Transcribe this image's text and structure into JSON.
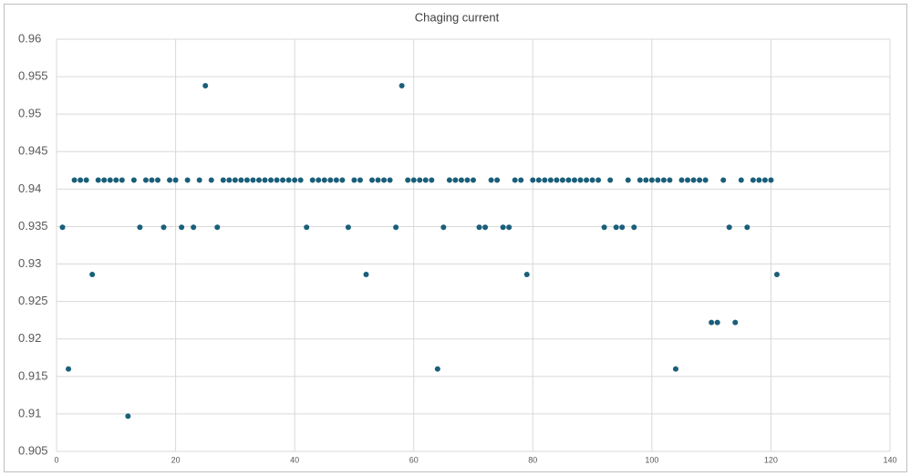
{
  "chart_data": {
    "type": "scatter",
    "title": "Chaging current",
    "color": "#1a5f7a",
    "grid": true,
    "x": [
      1,
      2,
      3,
      4,
      5,
      6,
      7,
      8,
      9,
      10,
      11,
      12,
      13,
      14,
      15,
      16,
      17,
      18,
      19,
      20,
      21,
      22,
      23,
      24,
      25,
      26,
      27,
      28,
      29,
      30,
      31,
      32,
      33,
      34,
      35,
      36,
      37,
      38,
      39,
      40,
      41,
      42,
      43,
      44,
      45,
      46,
      47,
      48,
      49,
      50,
      51,
      52,
      53,
      54,
      55,
      56,
      57,
      58,
      59,
      60,
      61,
      62,
      63,
      64,
      65,
      66,
      67,
      68,
      69,
      70,
      71,
      72,
      73,
      74,
      75,
      76,
      77,
      78,
      79,
      80,
      81,
      82,
      83,
      84,
      85,
      86,
      87,
      88,
      89,
      90,
      91,
      92,
      93,
      94,
      95,
      96,
      97,
      98,
      99,
      100,
      101,
      102,
      103,
      104,
      105,
      106,
      107,
      108,
      109,
      110,
      111,
      112,
      113,
      114,
      115,
      116,
      117,
      118,
      119,
      120,
      121
    ],
    "values": [
      0.9349,
      0.916,
      0.9412,
      0.9412,
      0.9412,
      0.9286,
      0.9412,
      0.9412,
      0.9412,
      0.9412,
      0.9412,
      0.9097,
      0.9412,
      0.9349,
      0.9412,
      0.9412,
      0.9412,
      0.9349,
      0.9412,
      0.9412,
      0.9349,
      0.9412,
      0.9349,
      0.9412,
      0.9538,
      0.9412,
      0.9349,
      0.9412,
      0.9412,
      0.9412,
      0.9412,
      0.9412,
      0.9412,
      0.9412,
      0.9412,
      0.9412,
      0.9412,
      0.9412,
      0.9412,
      0.9412,
      0.9412,
      0.9349,
      0.9412,
      0.9412,
      0.9412,
      0.9412,
      0.9412,
      0.9412,
      0.9349,
      0.9412,
      0.9412,
      0.9286,
      0.9412,
      0.9412,
      0.9412,
      0.9412,
      0.9349,
      0.9538,
      0.9412,
      0.9412,
      0.9412,
      0.9412,
      0.9412,
      0.916,
      0.9349,
      0.9412,
      0.9412,
      0.9412,
      0.9412,
      0.9412,
      0.9349,
      0.9349,
      0.9412,
      0.9412,
      0.9349,
      0.9349,
      0.9412,
      0.9412,
      0.9286,
      0.9412,
      0.9412,
      0.9412,
      0.9412,
      0.9412,
      0.9412,
      0.9412,
      0.9412,
      0.9412,
      0.9412,
      0.9412,
      0.9412,
      0.9349,
      0.9412,
      0.9349,
      0.9349,
      0.9412,
      0.9349,
      0.9412,
      0.9412,
      0.9412,
      0.9412,
      0.9412,
      0.9412,
      0.916,
      0.9412,
      0.9412,
      0.9412,
      0.9412,
      0.9412,
      0.9222,
      0.9222,
      0.9412,
      0.9349,
      0.9222,
      0.9412,
      0.9349,
      0.9412,
      0.9412,
      0.9412,
      0.9412,
      0.9286
    ],
    "xlim": [
      0,
      140
    ],
    "xticks": [
      0,
      20,
      40,
      60,
      80,
      100,
      120,
      140
    ],
    "ylim": [
      0.905,
      0.96
    ],
    "yticks": [
      0.905,
      0.91,
      0.915,
      0.92,
      0.925,
      0.93,
      0.935,
      0.94,
      0.945,
      0.95,
      0.955,
      0.96
    ]
  }
}
